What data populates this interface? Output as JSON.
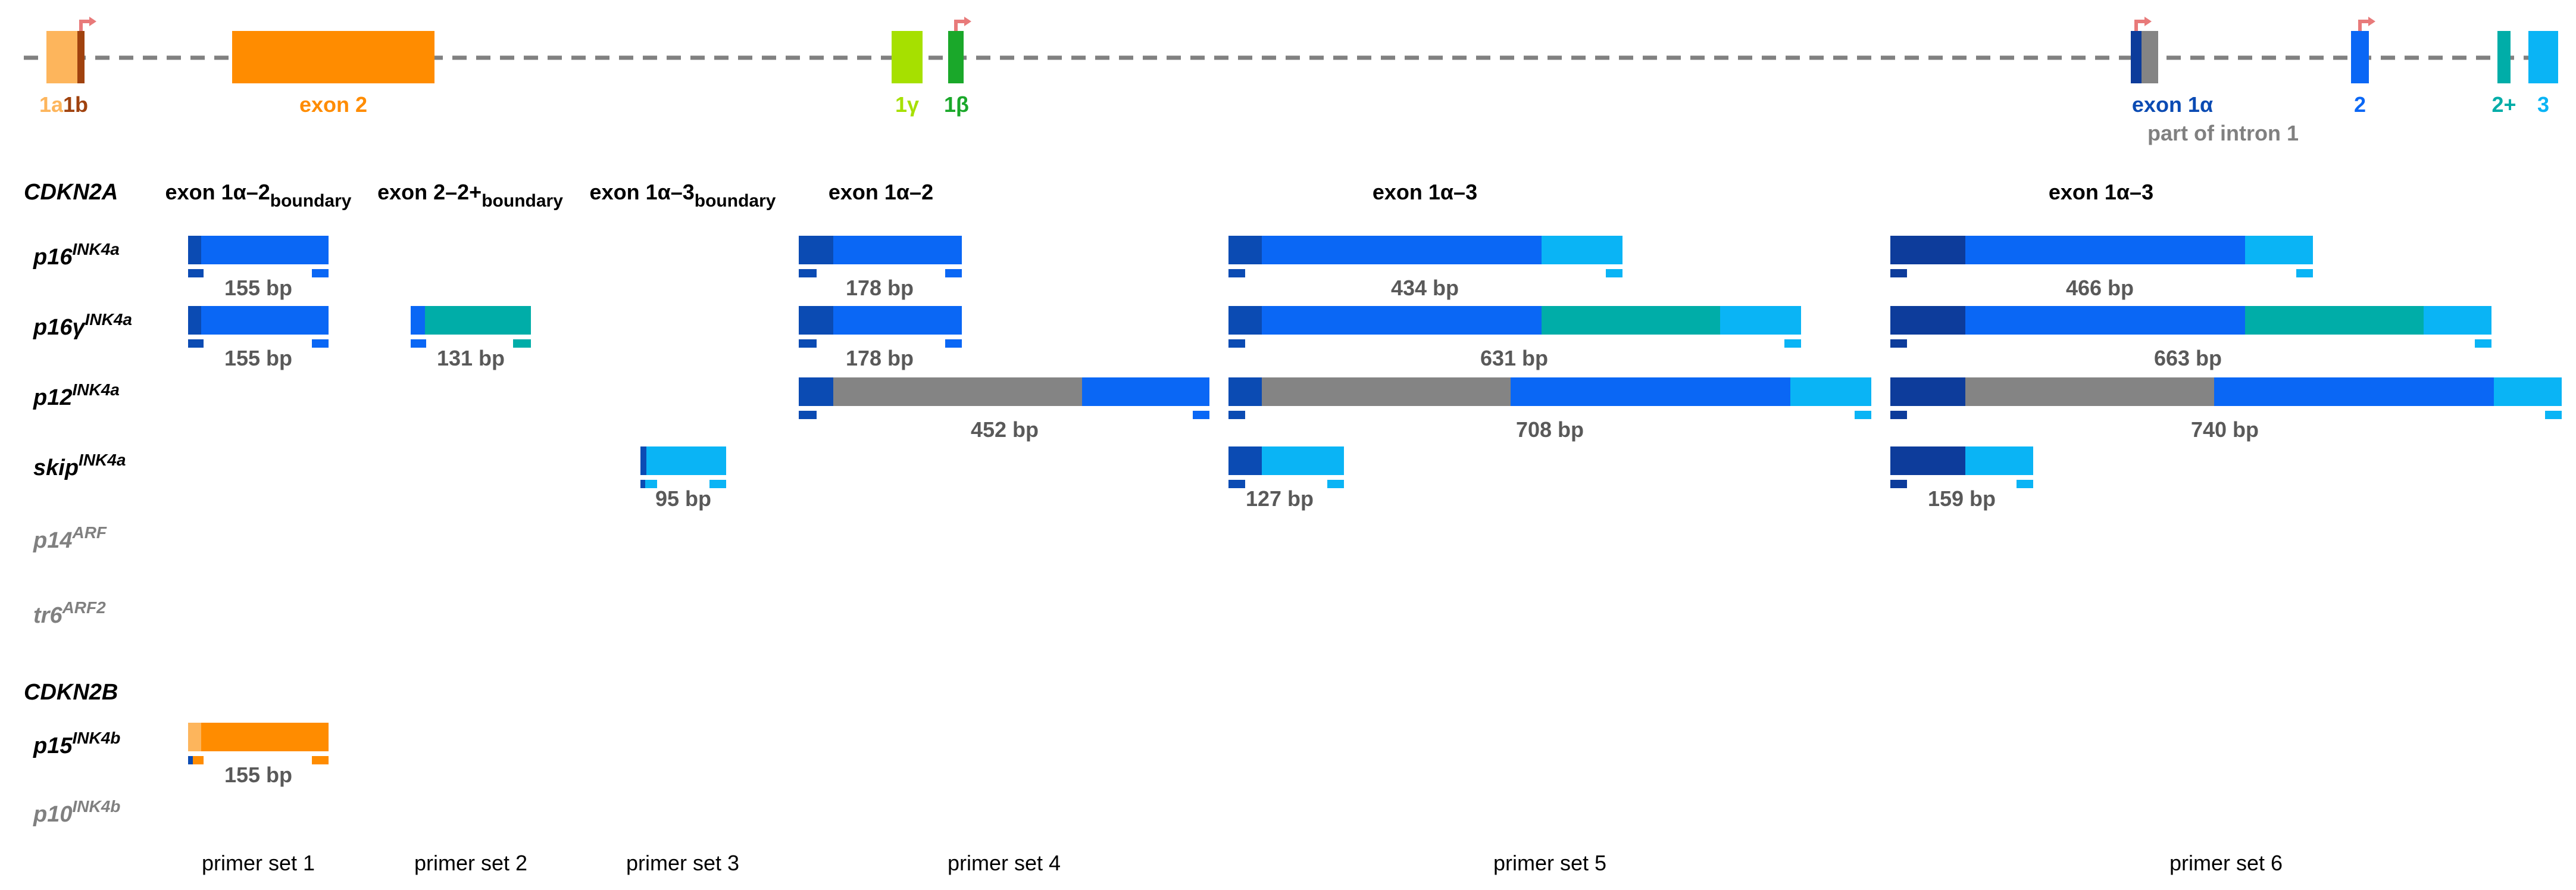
{
  "colors": {
    "exon_1a_light": "#FDB55C",
    "exon_1b": "#A0420E",
    "exon_2": "#FF8C00",
    "exon_1gamma": "#A6E000",
    "exon_1beta": "#1AA82A",
    "exon_1alpha_dark": "#0D3C9B",
    "exon_1alpha": "#0B4BB3",
    "intron_part": "#848484",
    "exon_2_blue": "#0A67F5",
    "exon_2plus": "#00ADA8",
    "exon_3": "#0AB4F5",
    "tss_arrow": "#E87A7A",
    "grey_label": "#808080",
    "dark_label": "#595959"
  },
  "gene_map": {
    "labels": {
      "e1a": "1a",
      "e1b": "1b",
      "exon2": "exon 2",
      "e1g": "1γ",
      "e1beta": "1β",
      "exon1alpha": "exon 1α",
      "intron": "part of intron 1",
      "e2": "2",
      "e2plus": "2+",
      "e3": "3"
    }
  },
  "genes": {
    "cdkn2a": "CDKN2A",
    "cdkn2b": "CDKN2B"
  },
  "rows": [
    {
      "id": "p16",
      "base": "p16",
      "sup": "INK4a",
      "dim": false
    },
    {
      "id": "p16g",
      "base": "p16γ",
      "sup": "INK4a",
      "dim": false
    },
    {
      "id": "p12",
      "base": "p12",
      "sup": "INK4a",
      "dim": false
    },
    {
      "id": "skip",
      "base": "skip",
      "sup": "INK4a",
      "dim": false
    },
    {
      "id": "p14",
      "base": "p14",
      "sup": "ARF",
      "dim": true
    },
    {
      "id": "tr6",
      "base": "tr6",
      "sup": "ARF2",
      "dim": true
    },
    {
      "id": "p15",
      "base": "p15",
      "sup": "INK4b",
      "dim": false
    },
    {
      "id": "p10",
      "base": "p10",
      "sup": "INK4b",
      "dim": true
    }
  ],
  "column_headers": [
    {
      "main": "exon 1α–2",
      "sub": "boundary"
    },
    {
      "main": "exon 2–2+",
      "sub": "boundary"
    },
    {
      "main": "exon 1α–3",
      "sub": "boundary"
    },
    {
      "main": "exon 1α–2",
      "sub": ""
    },
    {
      "main": "exon 1α–3",
      "sub": ""
    },
    {
      "main": "exon 1α–3",
      "sub": ""
    }
  ],
  "amplicons": {
    "p16_set1": "155 bp",
    "p16g_set1": "155 bp",
    "p16g_set2": "131 bp",
    "skip_set3": "95 bp",
    "p16_set4": "178 bp",
    "p16g_set4": "178 bp",
    "p12_set4": "452 bp",
    "p16_set5": "434 bp",
    "p16g_set5": "631 bp",
    "p12_set5": "708 bp",
    "skip_set5": "127 bp",
    "p16_set6": "466 bp",
    "p16g_set6": "663 bp",
    "p12_set6": "740 bp",
    "skip_set6": "159 bp",
    "p15_set1": "155 bp"
  },
  "primer_sets": [
    "primer set 1",
    "primer set 2",
    "primer set 3",
    "primer set 4",
    "primer set 5",
    "primer set 6"
  ]
}
